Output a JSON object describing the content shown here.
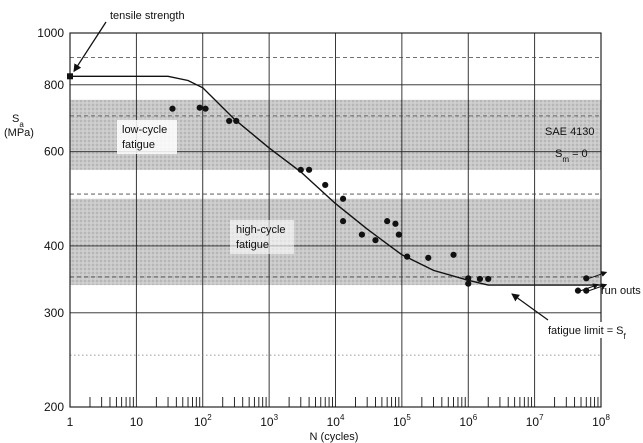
{
  "chart_data": {
    "type": "scatter",
    "xscale": "log",
    "yscale": "log",
    "xlim": [
      1,
      100000000
    ],
    "ylim": [
      200,
      1000
    ],
    "xlabel": "N (cycles)",
    "ylabel": "S",
    "ylabel_sub": "a",
    "ylabel_unit": "(MPa)",
    "x_ticks": [
      {
        "base": "1",
        "exp": ""
      },
      {
        "base": "10",
        "exp": ""
      },
      {
        "base": "10",
        "exp": "2"
      },
      {
        "base": "10",
        "exp": "3"
      },
      {
        "base": "10",
        "exp": "4"
      },
      {
        "base": "10",
        "exp": "5"
      },
      {
        "base": "10",
        "exp": "6"
      },
      {
        "base": "10",
        "exp": "7"
      },
      {
        "base": "10",
        "exp": "8"
      }
    ],
    "y_ticks": [
      "200",
      "300",
      "400",
      "600",
      "800",
      "1000"
    ],
    "material_label": "SAE 4130",
    "mean_stress_label": "S",
    "mean_stress_sub": "m",
    "mean_stress_value": " = 0",
    "tensile_strength": {
      "label": "tensile strength",
      "x": 1,
      "y": 830
    },
    "fatigue_limit": {
      "label": "fatigue limit = S",
      "sub": "f",
      "y": 338
    },
    "runouts_label": "run outs",
    "regions": [
      {
        "name": "low-cycle fatigue",
        "label_lines": [
          "low-cycle",
          "fatigue"
        ],
        "y_range": [
          555,
          750
        ]
      },
      {
        "name": "high-cycle fatigue",
        "label_lines": [
          "high-cycle",
          "fatigue"
        ],
        "y_range": [
          338,
          490
        ]
      }
    ],
    "fit_curve": [
      [
        1,
        830
      ],
      [
        30,
        830
      ],
      [
        60,
        815
      ],
      [
        100,
        790
      ],
      [
        300,
        690
      ],
      [
        1000,
        610
      ],
      [
        3000,
        550
      ],
      [
        10000,
        480
      ],
      [
        30000,
        430
      ],
      [
        100000,
        385
      ],
      [
        300000,
        360
      ],
      [
        1000000,
        345
      ],
      [
        2000000,
        338
      ],
      [
        100000000,
        338
      ]
    ],
    "data_points": [
      [
        35,
        722
      ],
      [
        90,
        725
      ],
      [
        110,
        722
      ],
      [
        250,
        685
      ],
      [
        320,
        685
      ],
      [
        3000,
        555
      ],
      [
        4000,
        555
      ],
      [
        7000,
        520
      ],
      [
        13000,
        490
      ],
      [
        13000,
        445
      ],
      [
        25000,
        420
      ],
      [
        40000,
        410
      ],
      [
        60000,
        445
      ],
      [
        80000,
        440
      ],
      [
        90000,
        420
      ],
      [
        120000,
        382
      ],
      [
        250000,
        380
      ],
      [
        600000,
        385
      ],
      [
        1000000,
        348
      ],
      [
        1000000,
        340
      ],
      [
        1500000,
        347
      ],
      [
        2000000,
        347
      ]
    ],
    "runout_points": [
      [
        45000000,
        330
      ],
      [
        60000000,
        348
      ],
      [
        60000000,
        330
      ]
    ],
    "grid": true
  }
}
